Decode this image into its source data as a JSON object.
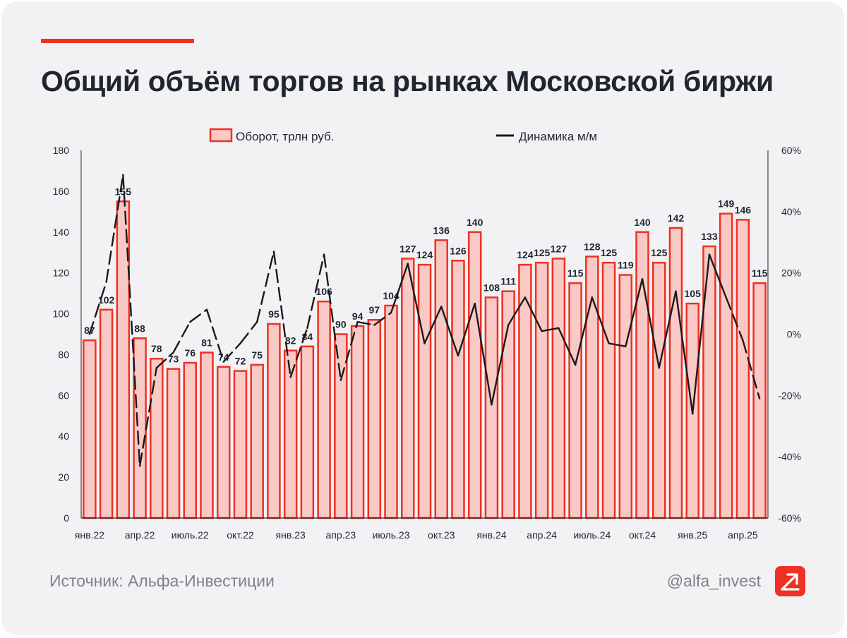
{
  "title": "Общий объём торгов на рынках Московской биржи",
  "footer": {
    "source": "Источник: Альфа-Инвестиции",
    "handle": "@alfa_invest",
    "logo_icon": "alfa-arrow-icon"
  },
  "colors": {
    "accent": "#ef3124",
    "bar_fill": "#f9c9c6",
    "bar_stroke": "#ef3124",
    "line": "#1a1a1a",
    "text": "#1f2630",
    "muted": "#7d838c"
  },
  "chart_data": {
    "type": "bar+line",
    "legend": {
      "position": "top-center",
      "bar_label": "Оборот, трлн руб.",
      "line_label": "Динамика м/м"
    },
    "x_labels": [
      "янв.22",
      "апр.22",
      "июль.22",
      "окт.22",
      "янв.23",
      "апр.23",
      "июль.23",
      "окт.23",
      "янв.24",
      "апр.24",
      "июль.24",
      "окт.24",
      "янв.25",
      "апр.25"
    ],
    "x_label_every": 3,
    "y_left": {
      "min": 0,
      "max": 180,
      "ticks": [
        "0",
        "20",
        "40",
        "60",
        "80",
        "100",
        "120",
        "140",
        "160",
        "180"
      ]
    },
    "y_right": {
      "min": -60,
      "max": 60,
      "ticks": [
        "-60%",
        "-40%",
        "-20%",
        "0%",
        "20%",
        "40%",
        "60%"
      ]
    },
    "series": [
      {
        "name": "Оборот, трлн руб.",
        "type": "bar",
        "axis": "left",
        "values": [
          87,
          102,
          155,
          88,
          78,
          73,
          76,
          81,
          74,
          72,
          75,
          95,
          82,
          84,
          106,
          90,
          94,
          97,
          104,
          127,
          124,
          136,
          126,
          140,
          108,
          111,
          124,
          125,
          127,
          115,
          128,
          125,
          119,
          140,
          125,
          142,
          105,
          133,
          149,
          146,
          115
        ]
      },
      {
        "name": "Динамика м/м",
        "type": "line",
        "axis": "right",
        "dashed_segments": [
          [
            0,
            18
          ],
          [
            38,
            40
          ]
        ],
        "values": [
          0,
          17,
          52,
          -43,
          -11,
          -6,
          4,
          8,
          -9,
          -3,
          4,
          27,
          -14,
          2,
          26,
          -15,
          4,
          3,
          7,
          23,
          -3,
          9,
          -7,
          10,
          -23,
          3,
          12,
          1,
          2,
          -10,
          12,
          -3,
          -4,
          18,
          -11,
          14,
          -26,
          26,
          12,
          -2,
          -21
        ]
      }
    ]
  }
}
